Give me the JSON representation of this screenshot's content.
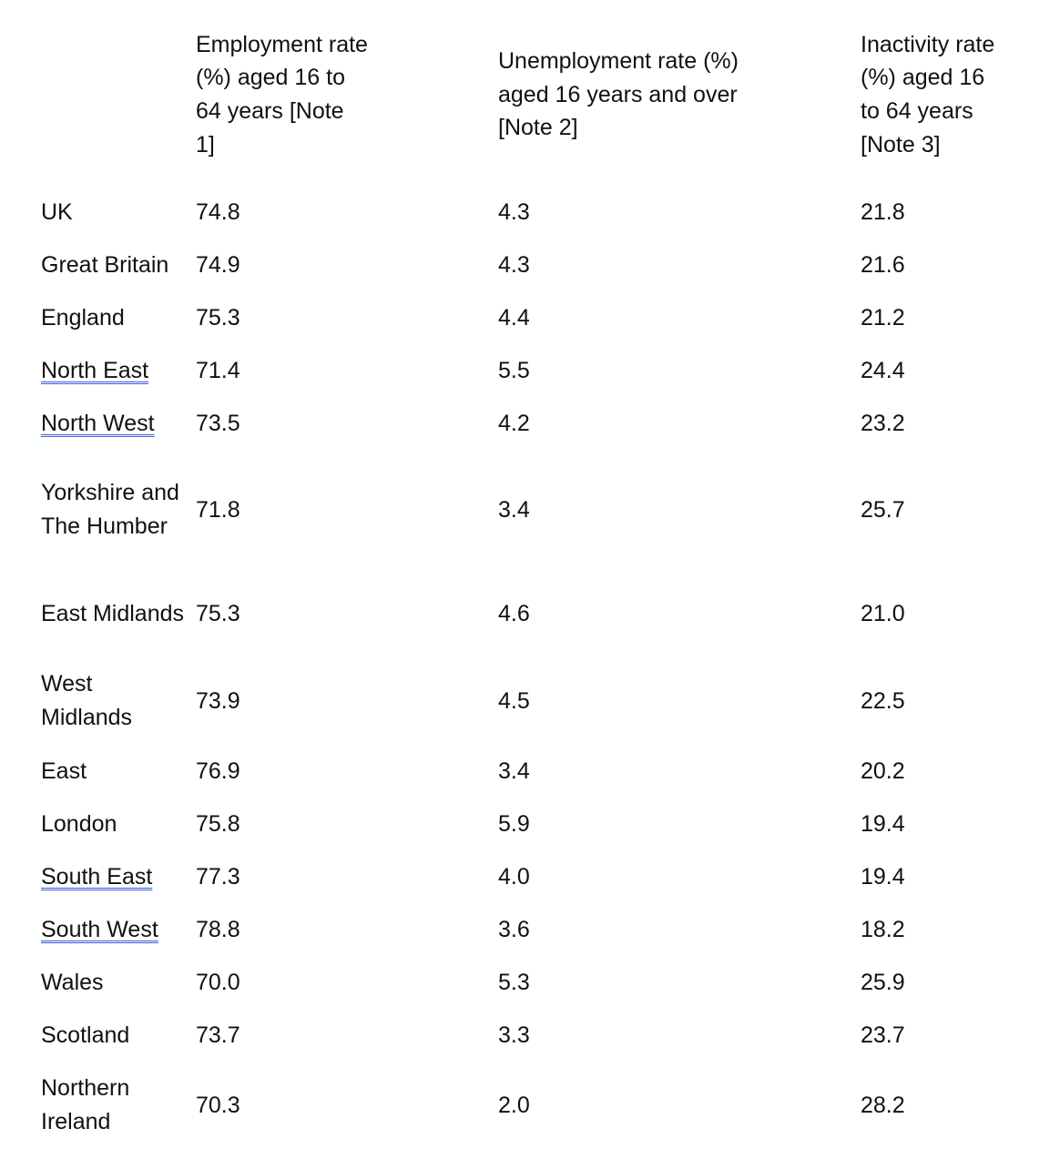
{
  "table": {
    "headers": {
      "region": "",
      "employment": "Employment rate (%) aged 16 to 64 years [Note 1]",
      "unemployment": "Unemployment rate (%) aged 16 years and over [Note 2]",
      "inactivity": "Inactivity rate (%) aged 16 to 64 years [Note 3]"
    },
    "rows": [
      {
        "region": "UK",
        "employment": "74.8",
        "unemployment": "4.3",
        "inactivity": "21.8"
      },
      {
        "region": "Great Britain",
        "employment": "74.9",
        "unemployment": "4.3",
        "inactivity": "21.6"
      },
      {
        "region": "England",
        "employment": "75.3",
        "unemployment": "4.4",
        "inactivity": "21.2"
      },
      {
        "region": "North East",
        "employment": "71.4",
        "unemployment": "5.5",
        "inactivity": "24.4"
      },
      {
        "region": "North West",
        "employment": "73.5",
        "unemployment": "4.2",
        "inactivity": "23.2"
      },
      {
        "region": "Yorkshire and The Humber",
        "employment": "71.8",
        "unemployment": "3.4",
        "inactivity": "25.7"
      },
      {
        "region": "East Midlands",
        "employment": "75.3",
        "unemployment": "4.6",
        "inactivity": "21.0"
      },
      {
        "region": "West Midlands",
        "employment": "73.9",
        "unemployment": "4.5",
        "inactivity": "22.5"
      },
      {
        "region": "East",
        "employment": "76.9",
        "unemployment": "3.4",
        "inactivity": "20.2"
      },
      {
        "region": "London",
        "employment": "75.8",
        "unemployment": "5.9",
        "inactivity": "19.4"
      },
      {
        "region": "South East",
        "employment": "77.3",
        "unemployment": "4.0",
        "inactivity": "19.4"
      },
      {
        "region": "South West",
        "employment": "78.8",
        "unemployment": "3.6",
        "inactivity": "18.2"
      },
      {
        "region": "Wales",
        "employment": "70.0",
        "unemployment": "5.3",
        "inactivity": "25.9"
      },
      {
        "region": "Scotland",
        "employment": "73.7",
        "unemployment": "3.3",
        "inactivity": "23.7"
      },
      {
        "region": "Northern Ireland",
        "employment": "70.3",
        "unemployment": "2.0",
        "inactivity": "28.2"
      }
    ]
  },
  "colors": {
    "text": "#111111",
    "spellcheck_underline": "#3b5bdb"
  }
}
